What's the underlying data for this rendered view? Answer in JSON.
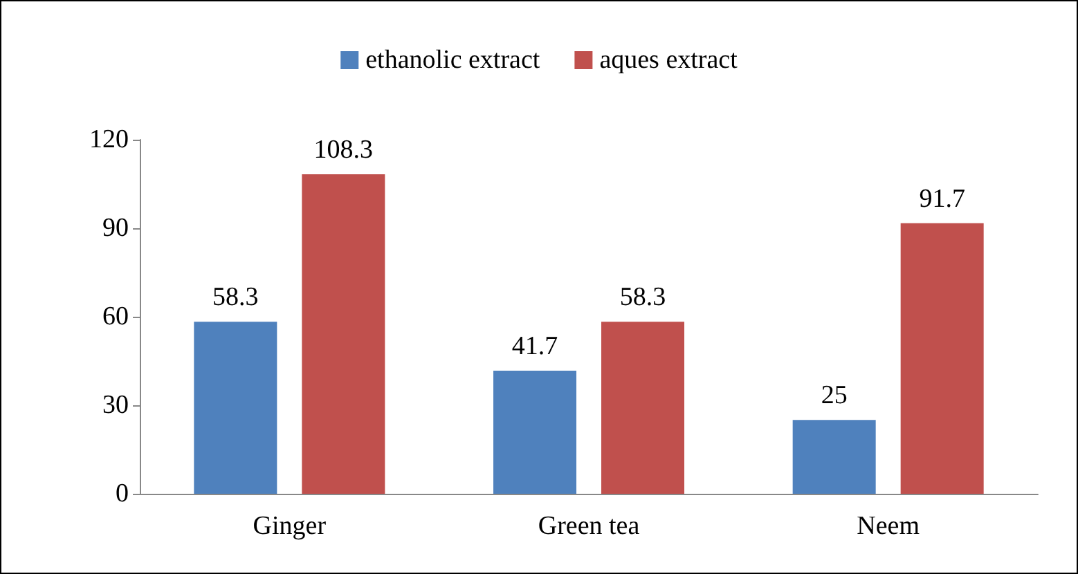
{
  "chart_data": {
    "type": "bar",
    "categories": [
      "Ginger",
      "Green tea",
      "Neem"
    ],
    "series": [
      {
        "name": "ethanolic extract",
        "color": "#4f81bd",
        "values": [
          58.3,
          41.7,
          25
        ]
      },
      {
        "name": "aques extract",
        "color": "#c0504d",
        "values": [
          108.3,
          58.3,
          91.7
        ]
      }
    ],
    "ylim": [
      0,
      120
    ],
    "yticks": [
      0,
      30,
      60,
      90,
      120
    ],
    "grid": false,
    "legend": "top",
    "data_labels": true
  }
}
